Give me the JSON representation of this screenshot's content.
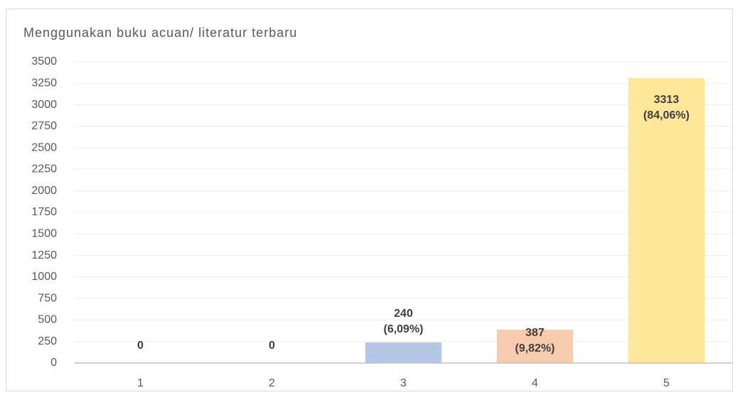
{
  "chart_data": {
    "type": "bar",
    "title": "Menggunakan buku acuan/ literatur terbaru",
    "categories": [
      "1",
      "2",
      "3",
      "4",
      "5"
    ],
    "values": [
      0,
      0,
      240,
      387,
      3313
    ],
    "value_labels": [
      [
        "0"
      ],
      [
        "0"
      ],
      [
        "240",
        "(6,09%)"
      ],
      [
        "387",
        "(9,82%)"
      ],
      [
        "3313",
        "(84,06%)"
      ]
    ],
    "colors": [
      "#c5e0b4",
      "#d9d9d9",
      "#b4c7e7",
      "#f8cbad",
      "#ffe699"
    ],
    "ylim": [
      0,
      3500
    ],
    "yticks": [
      0,
      250,
      500,
      750,
      1000,
      1250,
      1500,
      1750,
      2000,
      2250,
      2500,
      2750,
      3000,
      3250,
      3500
    ],
    "grid": true
  }
}
